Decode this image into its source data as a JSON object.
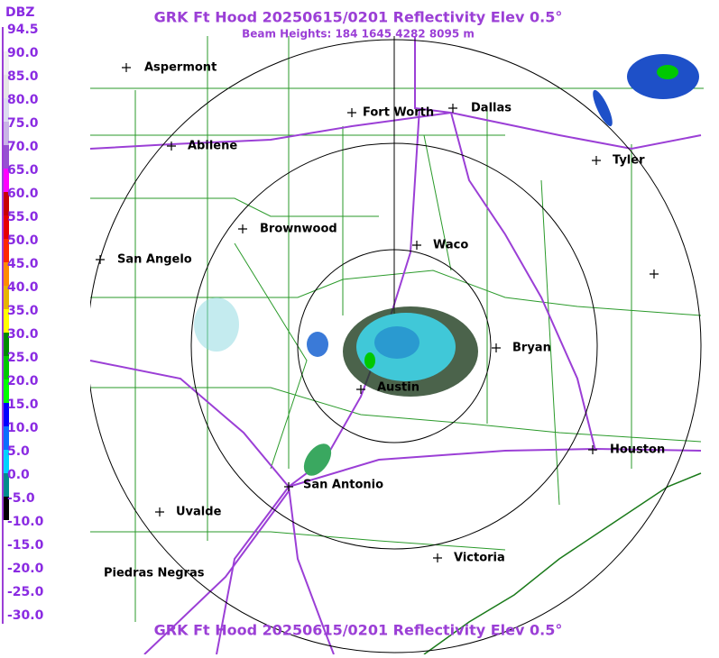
{
  "header": {
    "title": "GRK Ft Hood 20250615/0201 Reflectivity Elev 0.5°",
    "subtitle": "Beam Heights: 184 1645 4282 8095 m"
  },
  "legend": {
    "unit": "DBZ",
    "labels": [
      "94.5",
      "90.0",
      "85.0",
      "80.0",
      "75.0",
      "70.0",
      "65.0",
      "60.0",
      "55.0",
      "50.0",
      "45.0",
      "40.0",
      "35.0",
      "30.0",
      "25.0",
      "20.0",
      "15.0",
      "10.0",
      "5.0",
      "0.0",
      "-5.0",
      "-10.0",
      "-15.0",
      "-20.0",
      "-25.0",
      "-30.0"
    ],
    "colors": [
      "#ffffff",
      "#f0f0f0",
      "#e6e6e6",
      "#dcdcf0",
      "#c8b4e6",
      "#9650d2",
      "#ff00ff",
      "#c80000",
      "#e60000",
      "#ff2800",
      "#ff8c00",
      "#e6b400",
      "#ffff00",
      "#008c00",
      "#00c800",
      "#00ff00",
      "#0000ff",
      "#0a6eff",
      "#00d2ff",
      "#008c8c",
      "#000000",
      "#ffffff",
      "#ffffff",
      "#ffffff",
      "#ffffff",
      "#ffffff"
    ]
  },
  "cities": [
    {
      "label": "Aspermont"
    },
    {
      "label": "Fort Worth"
    },
    {
      "label": "Dallas"
    },
    {
      "label": "Abilene"
    },
    {
      "label": "Tyler"
    },
    {
      "label": "Brownwood"
    },
    {
      "label": "Waco"
    },
    {
      "label": "San Angelo"
    },
    {
      "label": "Bryan"
    },
    {
      "label": "Austin"
    },
    {
      "label": "Houston"
    },
    {
      "label": "San Antonio"
    },
    {
      "label": "Uvalde"
    },
    {
      "label": "Victoria"
    },
    {
      "label": "Piedras Negras"
    }
  ],
  "footer": {
    "title": "GRK Ft Hood 20250615/0201 Reflectivity Elev 0.5°"
  }
}
